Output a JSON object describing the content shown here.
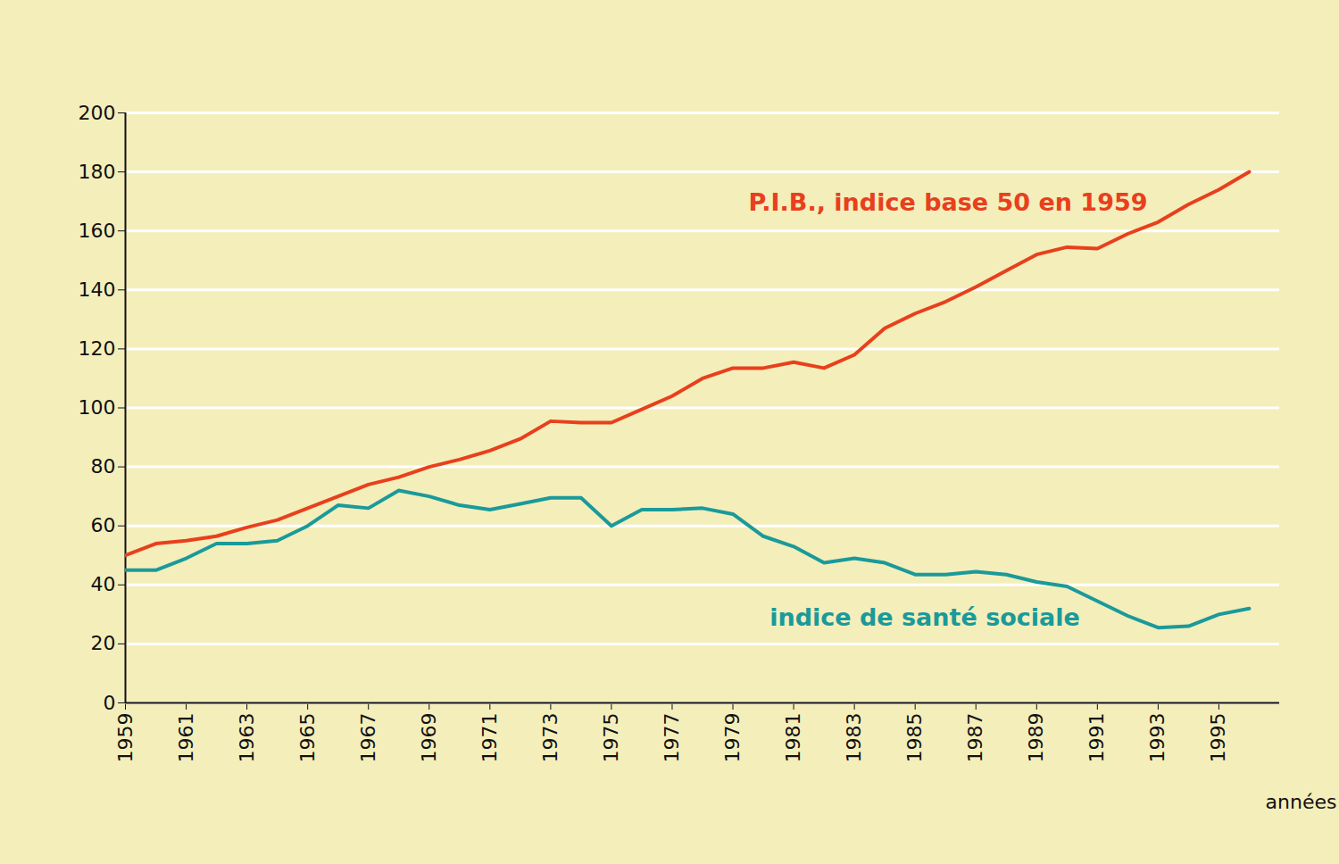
{
  "chart_data": {
    "type": "line",
    "x_label": "années",
    "x": [
      1959,
      1960,
      1961,
      1962,
      1963,
      1964,
      1965,
      1966,
      1967,
      1968,
      1969,
      1970,
      1971,
      1972,
      1973,
      1974,
      1975,
      1976,
      1977,
      1978,
      1979,
      1980,
      1981,
      1982,
      1983,
      1984,
      1985,
      1986,
      1987,
      1988,
      1989,
      1990,
      1991,
      1992,
      1993,
      1994,
      1995,
      1996
    ],
    "series": [
      {
        "name": "P.I.B., indice base 50 en 1959",
        "color": "#e8401c",
        "values": [
          50,
          54,
          55,
          56.5,
          59.5,
          62,
          66,
          70,
          74,
          76.5,
          80,
          82.5,
          85.5,
          89.5,
          95.5,
          95,
          95,
          99.5,
          104,
          110,
          113.5,
          113.5,
          115.5,
          113.5,
          118,
          127,
          132,
          136,
          141,
          146.5,
          152,
          154.5,
          154,
          159,
          163,
          169,
          174,
          180
        ]
      },
      {
        "name": "indice de santé sociale",
        "color": "#1a9a9a",
        "values": [
          45,
          45,
          49,
          54,
          54,
          55,
          60,
          67,
          66,
          72,
          70,
          67,
          65.5,
          67.5,
          69.5,
          69.5,
          60,
          65.5,
          65.5,
          66,
          64,
          56.5,
          53,
          47.5,
          49,
          47.5,
          43.5,
          43.5,
          44.5,
          43.5,
          41,
          39.5,
          34.5,
          29.5,
          25.5,
          26,
          30,
          32
        ]
      }
    ],
    "xlim": [
      1959,
      1997
    ],
    "ylim": [
      0,
      200
    ],
    "xticks": [
      1959,
      1961,
      1963,
      1965,
      1967,
      1969,
      1971,
      1973,
      1975,
      1977,
      1979,
      1981,
      1983,
      1985,
      1987,
      1989,
      1991,
      1993,
      1995
    ],
    "yticks": [
      0,
      20,
      40,
      60,
      80,
      100,
      120,
      140,
      160,
      180,
      200
    ],
    "grid": true
  }
}
